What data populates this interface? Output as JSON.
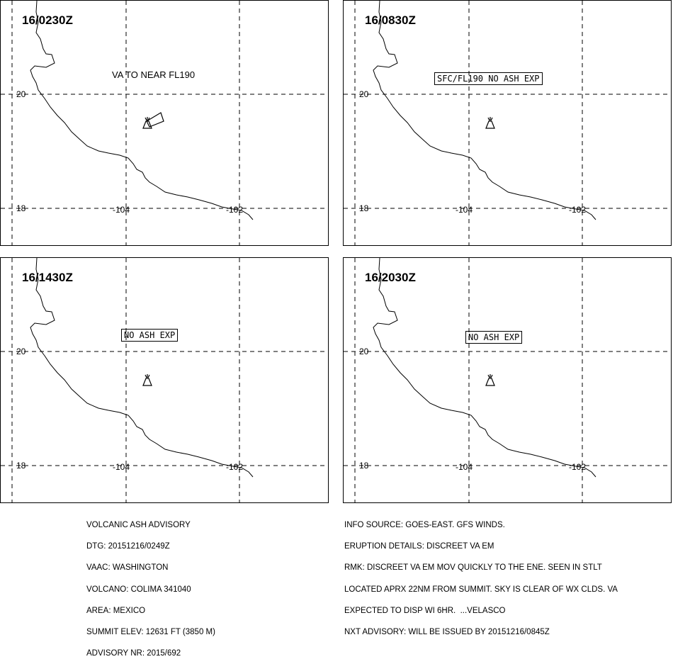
{
  "panels": [
    {
      "time": "16/0230Z",
      "note": "VA TO NEAR FL190",
      "note_boxed": false,
      "ash_polygon": true
    },
    {
      "time": "16/0830Z",
      "note": "SFC/FL190 NO ASH EXP",
      "note_boxed": true,
      "ash_polygon": false
    },
    {
      "time": "16/1430Z",
      "note": "NO ASH EXP",
      "note_boxed": true,
      "ash_polygon": false
    },
    {
      "time": "16/2030Z",
      "note": "NO ASH EXP",
      "note_boxed": true,
      "ash_polygon": false
    }
  ],
  "axis_labels": {
    "lat_20": "20",
    "lat_18": "18",
    "lon_104": "-104",
    "lon_102": "-102"
  },
  "advisory": {
    "left": [
      "VOLCANIC ASH ADVISORY",
      "DTG: 20151216/0249Z",
      "VAAC: WASHINGTON",
      "VOLCANO: COLIMA 341040",
      "AREA: MEXICO",
      "SUMMIT ELEV: 12631 FT (3850 M)",
      "ADVISORY NR: 2015/692"
    ],
    "right": [
      "INFO SOURCE: GOES-EAST. GFS WINDS.",
      "ERUPTION DETAILS: DISCREET VA EM",
      "RMK: DISCREET VA EM MOV QUICKLY TO THE ENE. SEEN IN STLT",
      "LOCATED APRX 22NM FROM SUMMIT. SKY IS CLEAR OF WX CLDS. VA",
      "EXPECTED TO DISP WI 6HR.  ...VELASCO",
      "NXT ADVISORY: WILL BE ISSUED BY 20151216/0845Z"
    ]
  },
  "colors": {
    "line": "#000000",
    "background": "#ffffff"
  },
  "icons": {
    "volcano": "volcano-icon"
  }
}
